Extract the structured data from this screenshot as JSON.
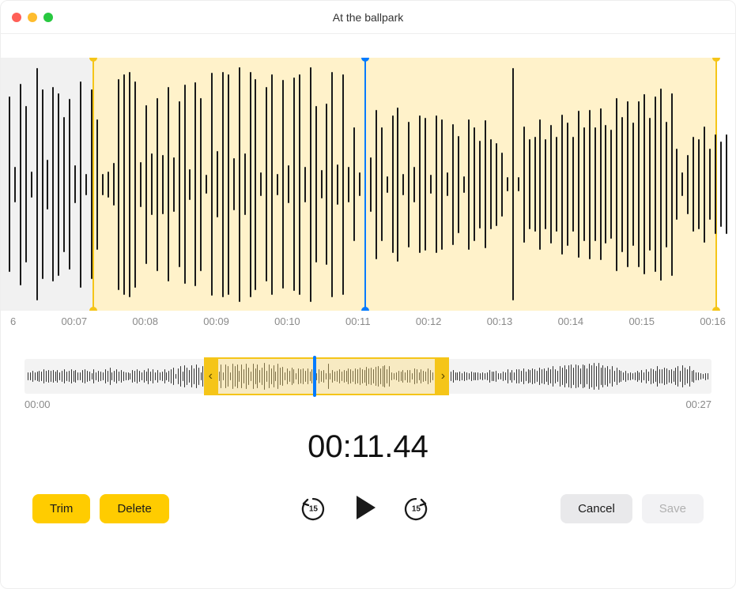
{
  "window": {
    "title": "At the ballpark",
    "traffic_light_colors": [
      "#ff5f57",
      "#febc2e",
      "#28c840"
    ]
  },
  "main_waveform": {
    "bar_color": "#1a1a1a",
    "selection_fill": "rgba(255,217,102,0.35)",
    "selection_border": "#f5c518",
    "playhead_color": "#007aff",
    "faded_bg_color": "rgba(230,230,230,0.55)",
    "selection_start_pct": 12.5,
    "selection_end_pct": 97.5,
    "playhead_pct": 49.5,
    "bar_count": 132,
    "amplitudes": [
      0.74,
      0.15,
      0.85,
      0.66,
      0.11,
      0.98,
      0.8,
      0.21,
      0.82,
      0.77,
      0.57,
      0.72,
      0.16,
      0.87,
      0.09,
      0.8,
      0.55,
      0.09,
      0.11,
      0.18,
      0.89,
      0.93,
      0.95,
      0.87,
      0.19,
      0.67,
      0.26,
      0.73,
      0.25,
      0.82,
      0.23,
      0.7,
      0.84,
      0.13,
      0.86,
      0.73,
      0.08,
      0.94,
      0.28,
      0.95,
      0.93,
      0.22,
      0.99,
      0.26,
      0.95,
      0.89,
      0.1,
      0.82,
      0.93,
      0.09,
      0.88,
      0.16,
      0.9,
      0.93,
      0.15,
      0.99,
      0.66,
      0.12,
      0.68,
      0.95,
      0.17,
      0.93,
      0.15,
      0.48,
      0.1,
      0.6,
      0.23,
      0.63,
      0.48,
      0.07,
      0.58,
      0.65,
      0.09,
      0.53,
      0.15,
      0.58,
      0.56,
      0.08,
      0.58,
      0.55,
      0.1,
      0.51,
      0.41,
      0.07,
      0.55,
      0.48,
      0.37,
      0.54,
      0.38,
      0.35,
      0.27,
      0.06,
      0.98,
      0.06,
      0.49,
      0.38,
      0.4,
      0.55,
      0.38,
      0.5,
      0.4,
      0.59,
      0.52,
      0.4,
      0.62,
      0.48,
      0.63,
      0.48,
      0.64,
      0.5,
      0.46,
      0.73,
      0.57,
      0.7,
      0.52,
      0.7,
      0.76,
      0.56,
      0.74,
      0.81,
      0.53,
      0.77,
      0.3,
      0.1,
      0.25,
      0.4,
      0.38,
      0.49,
      0.3,
      0.42,
      0.36,
      0.42
    ]
  },
  "ruler": {
    "labels": [
      "6",
      "00:07",
      "00:08",
      "00:09",
      "00:10",
      "00:11",
      "00:12",
      "00:13",
      "00:14",
      "00:15",
      "00:16"
    ]
  },
  "overview": {
    "start_label": "00:00",
    "end_label": "00:27",
    "bar_count": 300,
    "selection_start_pct": 28,
    "selection_end_pct": 60,
    "playhead_pct": 42,
    "handle_glyph_left": "‹",
    "handle_glyph_right": "›",
    "amplitudes": [
      0.3,
      0.28,
      0.38,
      0.26,
      0.35,
      0.41,
      0.31,
      0.48,
      0.39,
      0.42,
      0.39,
      0.45,
      0.36,
      0.42,
      0.28,
      0.39,
      0.48,
      0.36,
      0.4,
      0.52,
      0.38,
      0.44,
      0.3,
      0.26,
      0.46,
      0.5,
      0.4,
      0.36,
      0.24,
      0.51,
      0.3,
      0.4,
      0.32,
      0.28,
      0.51,
      0.4,
      0.62,
      0.3,
      0.4,
      0.5,
      0.32,
      0.42,
      0.34,
      0.28,
      0.3,
      0.22,
      0.46,
      0.38,
      0.51,
      0.4,
      0.28,
      0.43,
      0.35,
      0.58,
      0.34,
      0.5,
      0.29,
      0.42,
      0.26,
      0.32,
      0.51,
      0.3,
      0.41,
      0.5,
      0.62,
      0.18,
      0.54,
      0.72,
      0.32,
      0.8,
      0.6,
      0.42,
      0.78,
      0.55,
      0.82,
      0.6,
      0.3,
      0.74,
      0.46,
      0.8,
      0.62,
      0.25,
      0.7,
      0.85,
      0.34,
      0.82,
      0.3,
      0.85,
      0.7,
      0.3,
      0.88,
      0.72,
      0.82,
      0.4,
      0.86,
      0.5,
      0.9,
      0.6,
      0.35,
      0.88,
      0.54,
      0.82,
      0.42,
      0.62,
      0.92,
      0.4,
      0.85,
      0.55,
      0.8,
      0.35,
      0.88,
      0.6,
      0.64,
      0.28,
      0.56,
      0.38,
      0.6,
      0.5,
      0.2,
      0.55,
      0.48,
      0.53,
      0.4,
      0.55,
      0.32,
      0.5,
      0.45,
      0.25,
      0.52,
      0.4,
      0.42,
      0.22,
      0.9,
      0.2,
      0.44,
      0.32,
      0.38,
      0.5,
      0.36,
      0.46,
      0.4,
      0.55,
      0.48,
      0.4,
      0.58,
      0.5,
      0.6,
      0.52,
      0.46,
      0.66,
      0.55,
      0.62,
      0.5,
      0.66,
      0.72,
      0.58,
      0.7,
      0.76,
      0.52,
      0.72,
      0.3,
      0.22,
      0.26,
      0.4,
      0.36,
      0.46,
      0.3,
      0.42,
      0.44,
      0.23,
      0.55,
      0.51,
      0.28,
      0.48,
      0.4,
      0.32,
      0.55,
      0.42,
      0.3,
      0.6,
      0.26,
      0.49,
      0.41,
      0.43,
      0.29,
      0.38,
      0.32,
      0.42,
      0.3,
      0.28,
      0.36,
      0.25,
      0.32,
      0.3,
      0.21,
      0.34,
      0.29,
      0.26,
      0.26,
      0.24,
      0.3,
      0.22,
      0.28,
      0.42,
      0.31,
      0.36,
      0.4,
      0.22,
      0.2,
      0.34,
      0.28,
      0.51,
      0.26,
      0.42,
      0.3,
      0.5,
      0.48,
      0.4,
      0.55,
      0.32,
      0.5,
      0.42,
      0.58,
      0.51,
      0.4,
      0.62,
      0.5,
      0.58,
      0.4,
      0.62,
      0.52,
      0.7,
      0.52,
      0.4,
      0.71,
      0.62,
      0.8,
      0.5,
      0.78,
      0.81,
      0.6,
      0.84,
      0.78,
      0.54,
      0.86,
      0.8,
      0.55,
      0.9,
      0.8,
      0.92,
      0.7,
      0.92,
      0.62,
      0.8,
      0.62,
      0.7,
      0.52,
      0.72,
      0.4,
      0.6,
      0.45,
      0.4,
      0.3,
      0.38,
      0.25,
      0.3,
      0.22,
      0.3,
      0.38,
      0.28,
      0.42,
      0.3,
      0.5,
      0.32,
      0.58,
      0.5,
      0.4,
      0.7,
      0.48,
      0.52,
      0.6,
      0.56,
      0.42,
      0.52,
      0.4,
      0.62,
      0.72,
      0.4,
      0.8,
      0.62,
      0.5,
      0.7,
      0.38,
      0.42,
      0.28,
      0.3,
      0.22,
      0.18,
      0.25,
      0.2
    ]
  },
  "timecode": "00:11.44",
  "buttons": {
    "trim": "Trim",
    "delete": "Delete",
    "cancel": "Cancel",
    "save": "Save",
    "skip_seconds": "15"
  },
  "colors": {
    "yellow": "#ffcc00",
    "grey_btn": "#e9e9eb",
    "disabled_btn": "#f2f2f4",
    "disabled_text": "#b0b0b0"
  }
}
